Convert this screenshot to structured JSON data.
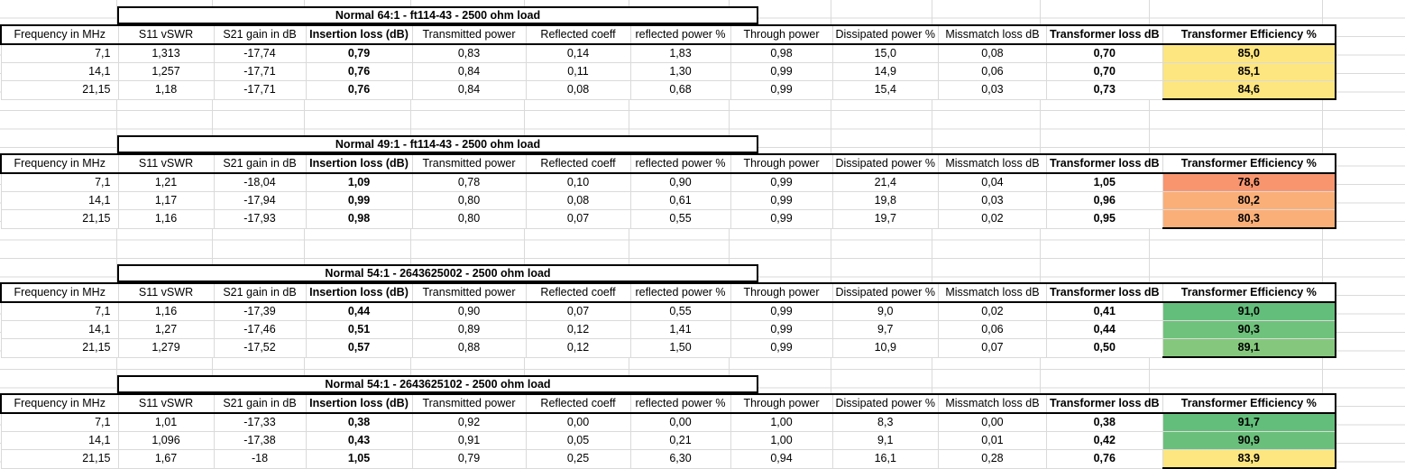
{
  "headers": [
    "Frequency in MHz",
    "S11 vSWR",
    "S21 gain in dB",
    "Insertion loss (dB)",
    "Transmitted power",
    "Reflected coeff",
    "reflected power %",
    "Through power",
    "Dissipated power %",
    "Missmatch loss dB",
    "Transformer loss dB",
    "Transformer Efficiency %"
  ],
  "blocks": [
    {
      "title": "Normal 64:1 - ft114-43 -  2500 ohm load",
      "rows": [
        {
          "cells": [
            "7,1",
            "1,313",
            "-17,74",
            "0,79",
            "0,83",
            "0,14",
            "1,83",
            "0,98",
            "15,0",
            "0,08",
            "0,70",
            "85,0"
          ],
          "eff_color": "#fde680"
        },
        {
          "cells": [
            "14,1",
            "1,257",
            "-17,71",
            "0,76",
            "0,84",
            "0,11",
            "1,30",
            "0,99",
            "14,9",
            "0,06",
            "0,70",
            "85,1"
          ],
          "eff_color": "#fde680"
        },
        {
          "cells": [
            "21,15",
            "1,18",
            "-17,71",
            "0,76",
            "0,84",
            "0,08",
            "0,68",
            "0,99",
            "15,4",
            "0,03",
            "0,73",
            "84,6"
          ],
          "eff_color": "#fde680"
        }
      ]
    },
    {
      "title": "Normal 49:1 - ft114-43 -  2500 ohm load",
      "rows": [
        {
          "cells": [
            "7,1",
            "1,21",
            "-18,04",
            "1,09",
            "0,78",
            "0,10",
            "0,90",
            "0,99",
            "21,4",
            "0,04",
            "1,05",
            "78,6"
          ],
          "eff_color": "#f8956f"
        },
        {
          "cells": [
            "14,1",
            "1,17",
            "-17,94",
            "0,99",
            "0,80",
            "0,08",
            "0,61",
            "0,99",
            "19,8",
            "0,03",
            "0,96",
            "80,2"
          ],
          "eff_color": "#fbaf78"
        },
        {
          "cells": [
            "21,15",
            "1,16",
            "-17,93",
            "0,98",
            "0,80",
            "0,07",
            "0,55",
            "0,99",
            "19,7",
            "0,02",
            "0,95",
            "80,3"
          ],
          "eff_color": "#fbaf78"
        }
      ]
    },
    {
      "title": "Normal 54:1 - 2643625002 -  2500 ohm load",
      "rows": [
        {
          "cells": [
            "7,1",
            "1,16",
            "-17,39",
            "0,44",
            "0,90",
            "0,07",
            "0,55",
            "0,99",
            "9,0",
            "0,02",
            "0,41",
            "91,0"
          ],
          "eff_color": "#63be7b"
        },
        {
          "cells": [
            "14,1",
            "1,27",
            "-17,46",
            "0,51",
            "0,89",
            "0,12",
            "1,41",
            "0,99",
            "9,7",
            "0,06",
            "0,44",
            "90,3"
          ],
          "eff_color": "#6fc27c"
        },
        {
          "cells": [
            "21,15",
            "1,279",
            "-17,52",
            "0,57",
            "0,88",
            "0,12",
            "1,50",
            "0,99",
            "10,9",
            "0,07",
            "0,50",
            "89,1"
          ],
          "eff_color": "#85c87d"
        }
      ]
    },
    {
      "title": "Normal 54:1 - 2643625102 -  2500 ohm load",
      "rows": [
        {
          "cells": [
            "7,1",
            "1,01",
            "-17,33",
            "0,38",
            "0,92",
            "0,00",
            "0,00",
            "1,00",
            "8,3",
            "0,00",
            "0,38",
            "91,7"
          ],
          "eff_color": "#63be7b"
        },
        {
          "cells": [
            "14,1",
            "1,096",
            "-17,38",
            "0,43",
            "0,91",
            "0,05",
            "0,21",
            "1,00",
            "9,1",
            "0,01",
            "0,42",
            "90,9"
          ],
          "eff_color": "#6abf7b"
        },
        {
          "cells": [
            "21,15",
            "1,67",
            "-18",
            "1,05",
            "0,79",
            "0,25",
            "6,30",
            "0,94",
            "16,1",
            "0,28",
            "0,76",
            "83,9"
          ],
          "eff_color": "#fde680"
        }
      ]
    }
  ]
}
